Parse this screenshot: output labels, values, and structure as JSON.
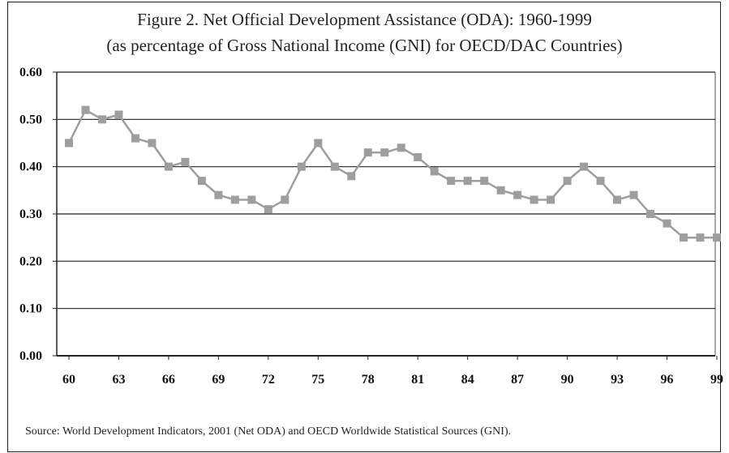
{
  "chart_data": {
    "type": "line",
    "title": "Figure 2. Net Official Development Assistance (ODA): 1960-1999",
    "subtitle": "(as percentage of  Gross National Income (GNI) for OECD/DAC Countries)",
    "x": [
      1960,
      1961,
      1962,
      1963,
      1964,
      1965,
      1966,
      1967,
      1968,
      1969,
      1970,
      1971,
      1972,
      1973,
      1974,
      1975,
      1976,
      1977,
      1978,
      1979,
      1980,
      1981,
      1982,
      1983,
      1984,
      1985,
      1986,
      1987,
      1988,
      1989,
      1990,
      1991,
      1992,
      1993,
      1994,
      1995,
      1996,
      1997,
      1998,
      1999
    ],
    "series": [
      {
        "values": [
          0.45,
          0.52,
          0.5,
          0.51,
          0.46,
          0.45,
          0.4,
          0.41,
          0.37,
          0.34,
          0.33,
          0.33,
          0.31,
          0.33,
          0.4,
          0.45,
          0.4,
          0.38,
          0.43,
          0.43,
          0.44,
          0.42,
          0.39,
          0.37,
          0.37,
          0.37,
          0.35,
          0.34,
          0.33,
          0.33,
          0.37,
          0.4,
          0.37,
          0.33,
          0.34,
          0.3,
          0.28,
          0.25,
          0.25,
          0.25
        ]
      }
    ],
    "x_tick_labels": [
      "60",
      "63",
      "66",
      "69",
      "72",
      "75",
      "78",
      "81",
      "84",
      "87",
      "90",
      "93",
      "96",
      "99"
    ],
    "x_tick_years": [
      1960,
      1963,
      1966,
      1969,
      1972,
      1975,
      1978,
      1981,
      1984,
      1987,
      1990,
      1993,
      1996,
      1999
    ],
    "y_tick_labels": [
      "0.00",
      "0.10",
      "0.20",
      "0.30",
      "0.40",
      "0.50",
      "0.60"
    ],
    "ylim": [
      0,
      0.6
    ],
    "xlim": [
      1960,
      1999
    ],
    "grid": "horizontal",
    "line_color": "#9e9e9e",
    "marker": "square",
    "source": "Source: World Development Indicators, 2001 (Net ODA) and OECD Worldwide Statistical Sources (GNI)."
  }
}
